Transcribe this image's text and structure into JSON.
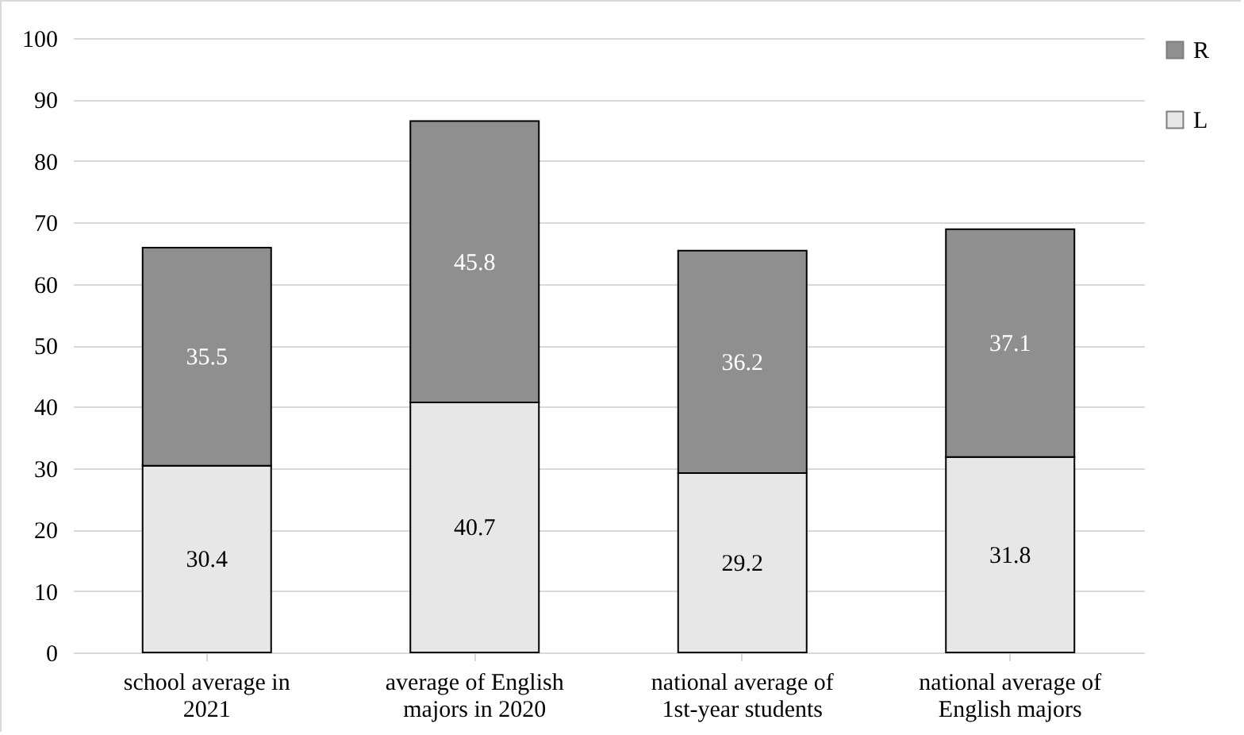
{
  "chart_data": {
    "type": "bar",
    "stacked": true,
    "categories": [
      "school average in 2021",
      "average of English majors in 2020",
      "national average of 1st-year students",
      "national average of English majors"
    ],
    "series": [
      {
        "name": "L",
        "color": "#e7e7e7",
        "values": [
          30.4,
          40.7,
          29.2,
          31.8
        ]
      },
      {
        "name": "R",
        "color": "#8f8f8f",
        "values": [
          35.5,
          45.8,
          36.2,
          37.1
        ]
      }
    ],
    "ylim": [
      0,
      100
    ],
    "yticks": [
      0,
      10,
      20,
      30,
      40,
      50,
      60,
      70,
      80,
      90,
      100
    ],
    "grid": "y",
    "legend": "right",
    "data_labels": true
  }
}
